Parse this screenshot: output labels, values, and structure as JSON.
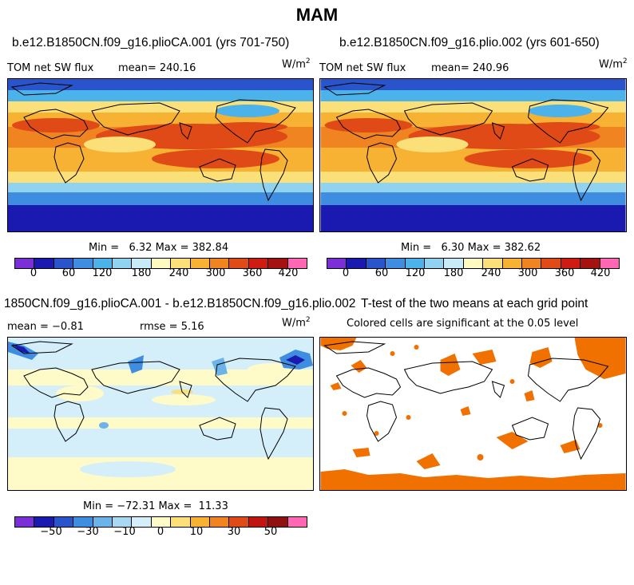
{
  "main_title": "MAM",
  "panels": [
    {
      "title": "b.e12.B1850CN.f09_g16.plioCA.001 (yrs 701-750)",
      "left_label": "TOM net SW flux",
      "mean_label": "mean= 240.16",
      "units": "W/m",
      "units_sup": "2",
      "minmax": "Min =   6.32 Max = 382.84",
      "colorbar_ticks": [
        "0",
        "60",
        "120",
        "180",
        "240",
        "300",
        "360",
        "420"
      ]
    },
    {
      "title": "b.e12.B1850CN.f09_g16.plio.002 (yrs 601-650)",
      "left_label": "TOM net SW flux",
      "mean_label": "mean= 240.96",
      "units": "W/m",
      "units_sup": "2",
      "minmax": "Min =   6.30 Max = 382.62",
      "colorbar_ticks": [
        "0",
        "60",
        "120",
        "180",
        "240",
        "300",
        "360",
        "420"
      ]
    },
    {
      "title": "1850CN.f09_g16.plioCA.001 - b.e12.B1850CN.f09_g16.plio.002",
      "left_label": "mean =  −0.81",
      "mean_label": "rmse =   5.16",
      "units": "W/m",
      "units_sup": "2",
      "minmax": "Min = −72.31 Max =  11.33",
      "colorbar_ticks": [
        "−50",
        "−30",
        "−10",
        "0",
        "10",
        "30",
        "50"
      ]
    },
    {
      "title": "T-test of the two means at each grid point",
      "subtitle": "Colored cells are significant at the 0.05 level"
    }
  ],
  "colors": {
    "abs_scale": [
      "#7b2fd6",
      "#1a1ab0",
      "#2a54cc",
      "#3f8de0",
      "#4cb3ea",
      "#8fd3f0",
      "#c8ecf7",
      "#fffbc0",
      "#fbe07a",
      "#f7b234",
      "#ef8420",
      "#e04a16",
      "#d01b12",
      "#a51210",
      "#ff66b3"
    ],
    "diff_scale": [
      "#7b2fd6",
      "#1a1ab0",
      "#2a54cc",
      "#3f8de0",
      "#6ab4ea",
      "#a8d8f2",
      "#d4eefa",
      "#fffbc8",
      "#fbe07a",
      "#f7b234",
      "#ef8420",
      "#e04a16",
      "#c01510",
      "#8f1010",
      "#ff66b3"
    ],
    "significance": "#f07000"
  }
}
